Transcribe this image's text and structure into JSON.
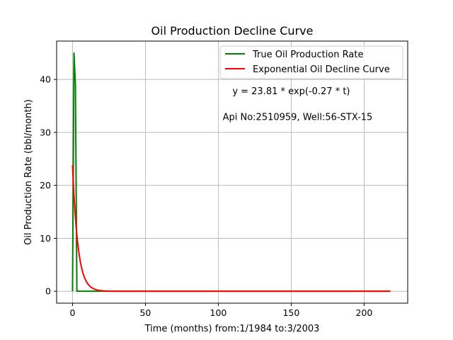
{
  "chart_data": {
    "type": "line",
    "title": "Oil Production Decline Curve",
    "xlabel": "Time (months) from:1/1984 to:3/2003",
    "ylabel": "Oil Production Rate (bbl/month)",
    "xlim": [
      -10.9,
      229.9
    ],
    "ylim": [
      -2.25,
      47.25
    ],
    "xticks": [
      0,
      50,
      100,
      150,
      200
    ],
    "yticks": [
      0,
      10,
      20,
      30,
      40
    ],
    "grid": true,
    "legend_position": "top-right",
    "series": [
      {
        "name": "True Oil Production Rate",
        "color": "#008000",
        "x": [
          0,
          1,
          2,
          3,
          218
        ],
        "y": [
          0,
          45,
          39,
          0,
          0
        ]
      },
      {
        "name": "Exponential Oil Decline Curve",
        "color": "#ff0000",
        "function": {
          "kind": "exponential",
          "a": 23.81,
          "b": -0.27
        },
        "x_range": [
          0,
          218
        ]
      }
    ],
    "annotations": [
      {
        "text": "y = 23.81 * exp(-0.27 * t)",
        "x": 150,
        "y": 37.2
      },
      {
        "text": "Api No:2510959, Well:56-STX-15",
        "x": 103,
        "y": 32.3
      }
    ]
  }
}
